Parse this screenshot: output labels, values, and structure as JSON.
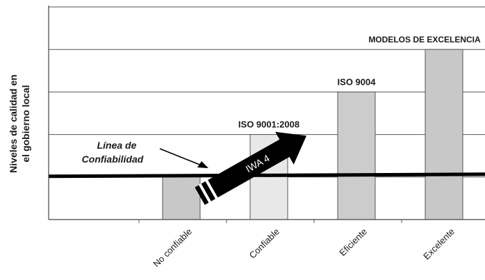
{
  "chart_data": {
    "type": "bar",
    "ylabel_lines": [
      "Niveles de calidad en",
      "el gobierno local"
    ],
    "categories": [
      "No confiable",
      "Confiable",
      "Eficiente",
      "Excelente"
    ],
    "values": [
      1,
      2,
      3,
      4
    ],
    "bar_labels": [
      "",
      "ISO 9001:2008",
      "ISO 9004",
      "MODELOS DE EXCELENCIA"
    ],
    "bar_colors": [
      "#c8c8c8",
      "#e8e8e8",
      "#cccccc",
      "#c8c8c8"
    ],
    "ylim": [
      0,
      5
    ],
    "grid": true,
    "reference_line": {
      "value": 1,
      "label_lines": [
        "Línea de",
        "Confiabilidad"
      ]
    },
    "arrow_label": "IWA 4"
  }
}
